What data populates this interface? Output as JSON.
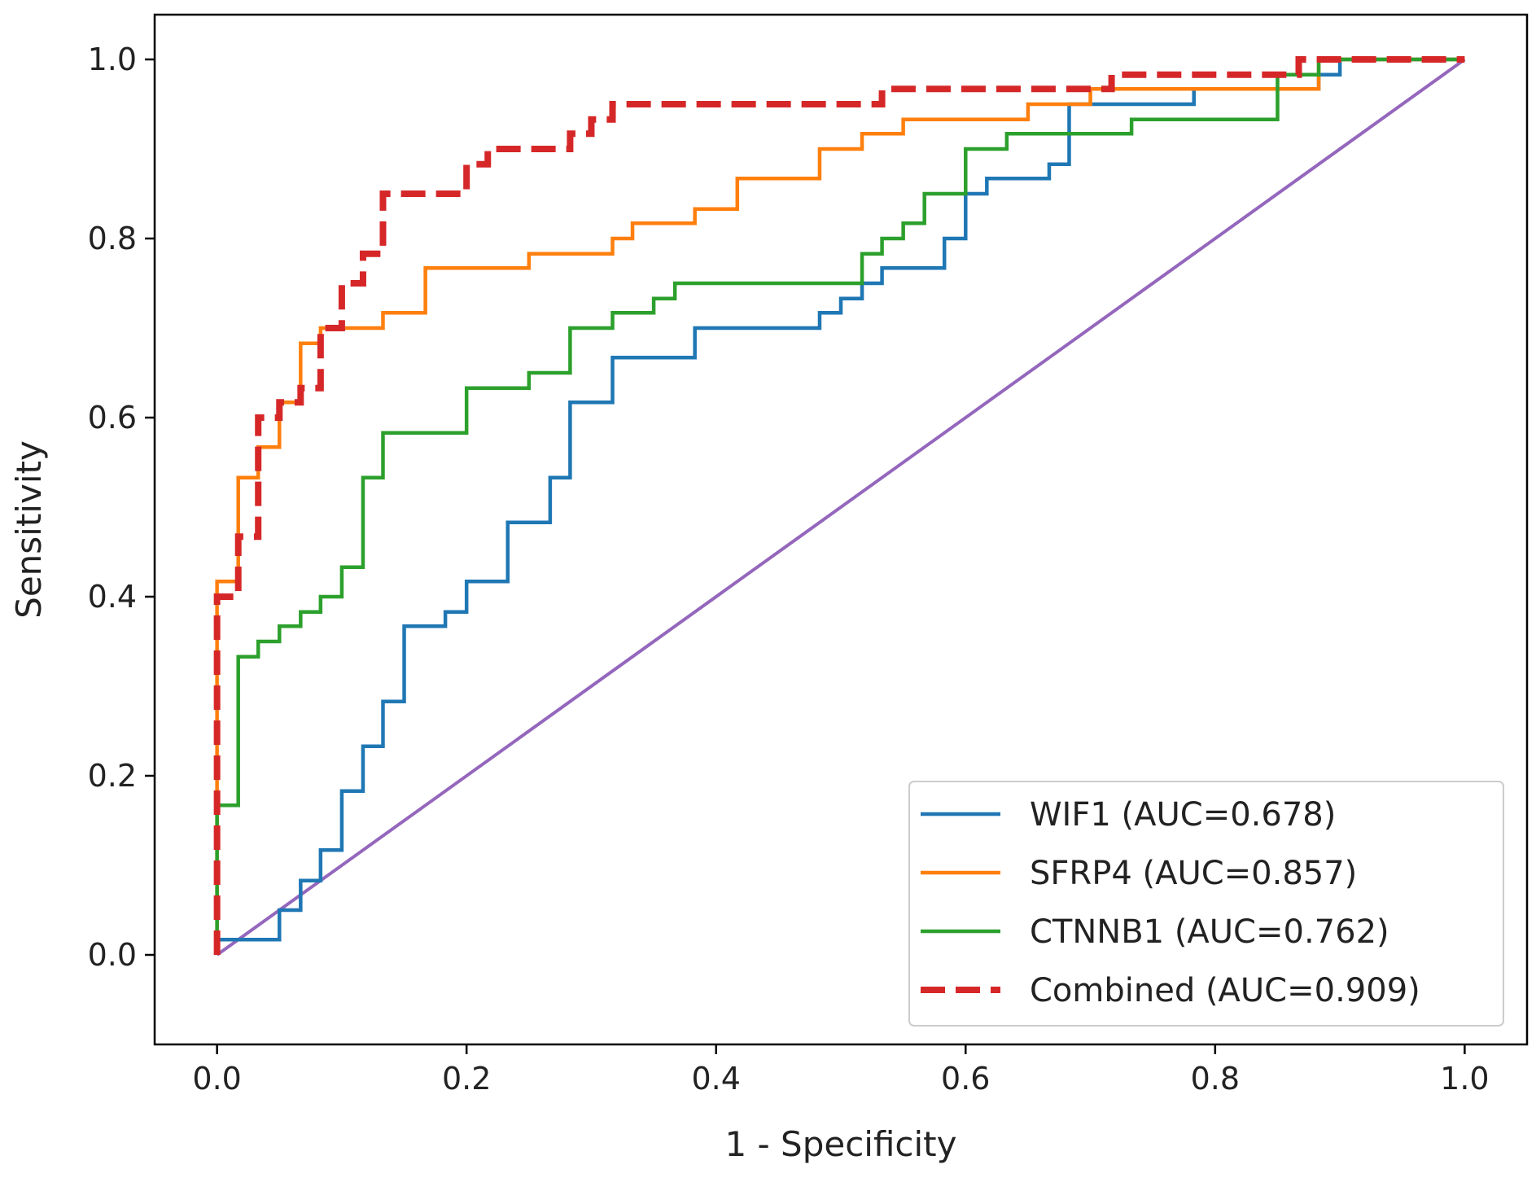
{
  "chart_data": {
    "type": "line",
    "title": "",
    "xlabel": "1 - Specificity",
    "ylabel": "Sensitivity",
    "xlim": [
      -0.05,
      1.05
    ],
    "ylim": [
      -0.1,
      1.05
    ],
    "xticks": [
      "0.0",
      "0.2",
      "0.4",
      "0.6",
      "0.8",
      "1.0"
    ],
    "yticks": [
      "0.0",
      "0.2",
      "0.4",
      "0.6",
      "0.8",
      "1.0"
    ],
    "grid": false,
    "legend_position": "lower-right",
    "series": [
      {
        "name": "WIF1 (AUC=0.678)",
        "color": "#1f77b4",
        "dash": "solid",
        "x": [
          0,
          0,
          0.05,
          0.05,
          0.067,
          0.067,
          0.083,
          0.083,
          0.1,
          0.1,
          0.117,
          0.117,
          0.133,
          0.133,
          0.15,
          0.15,
          0.183,
          0.183,
          0.2,
          0.2,
          0.233,
          0.233,
          0.267,
          0.267,
          0.283,
          0.283,
          0.317,
          0.317,
          0.383,
          0.383,
          0.483,
          0.483,
          0.5,
          0.5,
          0.517,
          0.517,
          0.533,
          0.533,
          0.583,
          0.583,
          0.6,
          0.6,
          0.617,
          0.617,
          0.667,
          0.667,
          0.683,
          0.683,
          0.783,
          0.783,
          0.883,
          0.883,
          0.9,
          0.9,
          1.0
        ],
        "y": [
          0,
          0.017,
          0.017,
          0.05,
          0.05,
          0.083,
          0.083,
          0.117,
          0.117,
          0.183,
          0.183,
          0.233,
          0.233,
          0.283,
          0.283,
          0.367,
          0.367,
          0.383,
          0.383,
          0.417,
          0.417,
          0.483,
          0.483,
          0.533,
          0.533,
          0.617,
          0.617,
          0.667,
          0.667,
          0.7,
          0.7,
          0.717,
          0.717,
          0.733,
          0.733,
          0.75,
          0.75,
          0.767,
          0.767,
          0.8,
          0.8,
          0.85,
          0.85,
          0.867,
          0.867,
          0.883,
          0.883,
          0.95,
          0.95,
          0.967,
          0.967,
          0.983,
          0.983,
          1.0,
          1.0
        ]
      },
      {
        "name": "SFRP4 (AUC=0.857)",
        "color": "#ff7f0e",
        "dash": "solid",
        "x": [
          0,
          0,
          0.017,
          0.017,
          0.033,
          0.033,
          0.05,
          0.05,
          0.067,
          0.067,
          0.083,
          0.083,
          0.1,
          0.1,
          0.133,
          0.133,
          0.167,
          0.167,
          0.25,
          0.25,
          0.317,
          0.317,
          0.333,
          0.333,
          0.383,
          0.383,
          0.417,
          0.417,
          0.483,
          0.483,
          0.517,
          0.517,
          0.55,
          0.55,
          0.65,
          0.65,
          0.7,
          0.7,
          0.883,
          0.883,
          1.0
        ],
        "y": [
          0,
          0.417,
          0.417,
          0.533,
          0.533,
          0.567,
          0.567,
          0.617,
          0.617,
          0.683,
          0.683,
          0.7,
          0.7,
          0.7,
          0.7,
          0.717,
          0.717,
          0.767,
          0.767,
          0.783,
          0.783,
          0.8,
          0.8,
          0.817,
          0.817,
          0.833,
          0.833,
          0.867,
          0.867,
          0.9,
          0.9,
          0.917,
          0.917,
          0.933,
          0.933,
          0.95,
          0.95,
          0.967,
          0.967,
          1.0,
          1.0
        ]
      },
      {
        "name": "CTNNB1 (AUC=0.762)",
        "color": "#2ca02c",
        "dash": "solid",
        "x": [
          0,
          0,
          0.017,
          0.017,
          0.033,
          0.033,
          0.05,
          0.05,
          0.067,
          0.067,
          0.083,
          0.083,
          0.1,
          0.1,
          0.117,
          0.117,
          0.133,
          0.133,
          0.2,
          0.2,
          0.25,
          0.25,
          0.283,
          0.283,
          0.317,
          0.317,
          0.35,
          0.35,
          0.367,
          0.367,
          0.517,
          0.517,
          0.533,
          0.533,
          0.55,
          0.55,
          0.567,
          0.567,
          0.6,
          0.6,
          0.633,
          0.633,
          0.733,
          0.733,
          0.85,
          0.85,
          0.883,
          0.883,
          1.0
        ],
        "y": [
          0,
          0.167,
          0.167,
          0.333,
          0.333,
          0.35,
          0.35,
          0.367,
          0.367,
          0.383,
          0.383,
          0.4,
          0.4,
          0.433,
          0.433,
          0.533,
          0.533,
          0.583,
          0.583,
          0.633,
          0.633,
          0.65,
          0.65,
          0.7,
          0.7,
          0.717,
          0.717,
          0.733,
          0.733,
          0.75,
          0.75,
          0.783,
          0.783,
          0.8,
          0.8,
          0.817,
          0.817,
          0.85,
          0.85,
          0.9,
          0.9,
          0.917,
          0.917,
          0.933,
          0.933,
          0.983,
          0.983,
          1.0,
          1.0
        ]
      },
      {
        "name": "Combined (AUC=0.909)",
        "color": "#d62728",
        "dash": "dashed",
        "x": [
          0,
          0,
          0.017,
          0.017,
          0.033,
          0.033,
          0.05,
          0.05,
          0.067,
          0.067,
          0.083,
          0.083,
          0.1,
          0.1,
          0.117,
          0.117,
          0.133,
          0.133,
          0.2,
          0.2,
          0.217,
          0.217,
          0.283,
          0.283,
          0.3,
          0.3,
          0.317,
          0.317,
          0.533,
          0.533,
          0.717,
          0.717,
          0.867,
          0.867,
          1.0
        ],
        "y": [
          0,
          0.4,
          0.4,
          0.467,
          0.467,
          0.6,
          0.6,
          0.617,
          0.617,
          0.633,
          0.633,
          0.7,
          0.7,
          0.75,
          0.75,
          0.783,
          0.783,
          0.85,
          0.85,
          0.883,
          0.883,
          0.9,
          0.9,
          0.917,
          0.917,
          0.933,
          0.933,
          0.95,
          0.95,
          0.967,
          0.967,
          0.983,
          0.983,
          1.0,
          1.0
        ]
      }
    ],
    "reference_line": {
      "color": "#9467bd",
      "x": [
        0,
        1
      ],
      "y": [
        0,
        1
      ]
    }
  }
}
